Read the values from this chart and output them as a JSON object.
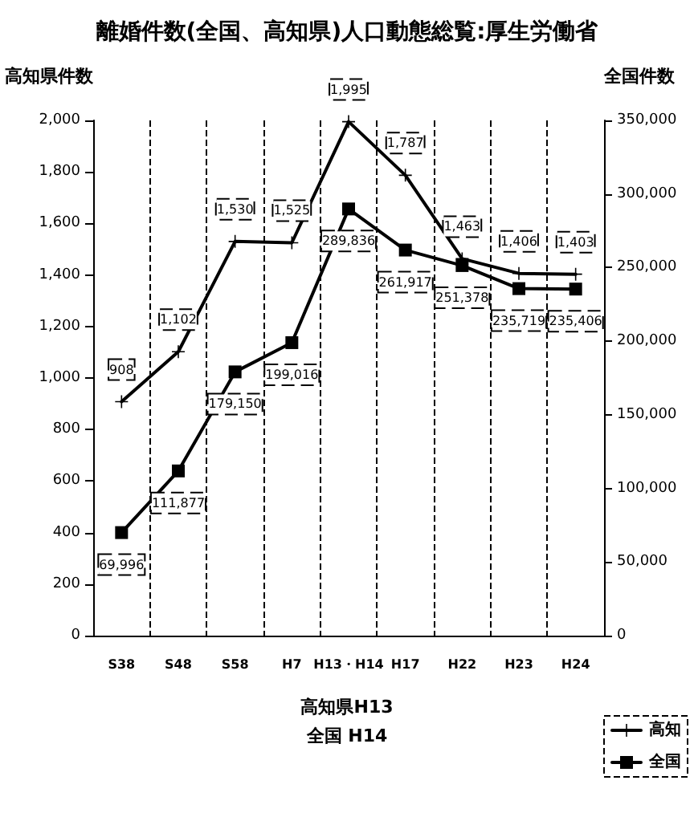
{
  "chart_data": {
    "type": "line",
    "title": "離婚件数(全国、高知県)人口動態総覧:厚生労働省",
    "ylabel": "高知県件数",
    "y2label": "全国件数",
    "categories": [
      "S38",
      "S48",
      "S58",
      "H7",
      "H13・H14",
      "H17",
      "H22",
      "H23",
      "H24"
    ],
    "series": [
      {
        "name": "高知",
        "color": "#000000",
        "marker": "cross",
        "values": [
          908,
          1102,
          1530,
          1525,
          1995,
          1787,
          1463,
          1406,
          1403
        ],
        "value_labels": [
          "908",
          "1,102",
          "1,530",
          "1,525",
          "1,995",
          "1,787",
          "1,463",
          "1,406",
          "1,403"
        ]
      },
      {
        "name": "全国",
        "color": "#000000",
        "marker": "square",
        "axis": "y2",
        "values": [
          69996,
          111877,
          179150,
          199016,
          289836,
          261917,
          251378,
          235719,
          235406
        ],
        "value_labels": [
          "69,996",
          "111,877",
          "179,150",
          "199,016",
          "289,836",
          "261,917",
          "251,378",
          "235,719",
          "235,406"
        ]
      }
    ],
    "ylim": [
      0,
      2000
    ],
    "yticks": [
      0,
      200,
      400,
      600,
      800,
      {
        "value": 1000,
        "label": "1,000"
      },
      {
        "value": 1200,
        "label": "1,200"
      },
      {
        "value": 1400,
        "label": "1,400"
      },
      {
        "value": 1600,
        "label": "1,600"
      },
      {
        "value": 1800,
        "label": "1,800"
      },
      {
        "value": 2000,
        "label": "2,000"
      }
    ],
    "y2lim": [
      0,
      350000
    ],
    "y2ticks": [
      0,
      {
        "value": 50000,
        "label": "50,000"
      },
      {
        "value": 100000,
        "label": "100,000"
      },
      {
        "value": 150000,
        "label": "150,000"
      },
      {
        "value": 200000,
        "label": "200,000"
      },
      {
        "value": 250000,
        "label": "250,000"
      },
      {
        "value": 300000,
        "label": "300,000"
      },
      {
        "value": 350000,
        "label": "350,000"
      }
    ],
    "annotations": [
      "高知県H13",
      "全国 H14"
    ],
    "grid": "x",
    "legend": "bottom right",
    "line_style": "solid"
  }
}
